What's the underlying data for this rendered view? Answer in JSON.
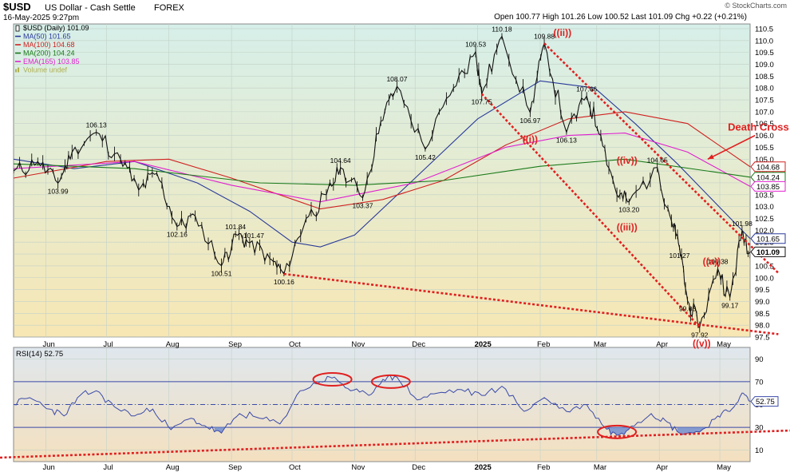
{
  "header": {
    "symbol": "$USD",
    "name": "US Dollar - Cash Settle",
    "exchange": "FOREX",
    "date": "16-May-2025 9:27pm",
    "ohlc": "Open 100.77  High 101.26  Low 100.52  Last 101.09  Chg +0.22 (+0.21%)",
    "brand": "© StockCharts.com"
  },
  "legend": [
    {
      "label": "$USD (Daily) 101.09",
      "color": "#000000",
      "symbol": "candle"
    },
    {
      "label": "MA(50) 101.65",
      "color": "#2a3a9a",
      "symbol": "line"
    },
    {
      "label": "MA(100) 104.68",
      "color": "#d02020",
      "symbol": "line"
    },
    {
      "label": "MA(200) 104.24",
      "color": "#1a7a1a",
      "symbol": "line"
    },
    {
      "label": "EMA(165) 103.85",
      "color": "#e020d0",
      "symbol": "line"
    },
    {
      "label": "Volume undef",
      "color": "#b0b050",
      "symbol": "bars"
    }
  ],
  "colors": {
    "price_bg_top": "#d6efe9",
    "price_bg_bottom": "#f7e7b4",
    "rsi_bg_top": "#dfe7ee",
    "rsi_bg_bottom": "#f4e0bf",
    "grid": "#c2d1c8",
    "price": "#111111",
    "ma50": "#2a3a9a",
    "ma100": "#d02020",
    "ema165": "#e020d0",
    "ma200": "#1a7a1a",
    "annotation_red": "#e02020",
    "rsi_line": "#3a4aa8",
    "rsi_fill": "#6a8ad0"
  },
  "chart_data": {
    "type": "line",
    "x_axis": {
      "months": [
        "Jun",
        "Jul",
        "Aug",
        "Sep",
        "Oct",
        "Nov",
        "Dec",
        "2025",
        "Feb",
        "Mar",
        "Apr",
        "May"
      ],
      "range": [
        "2024-05-16",
        "2025-05-16"
      ]
    },
    "y_axis": {
      "min": 97.5,
      "max": 110.7,
      "ticks": [
        97.5,
        98.0,
        98.5,
        99.0,
        99.5,
        100.0,
        100.5,
        101.0,
        101.5,
        102.0,
        102.5,
        103.0,
        103.5,
        104.0,
        104.5,
        105.0,
        105.5,
        106.0,
        106.5,
        107.0,
        107.5,
        108.0,
        108.5,
        109.0,
        109.5,
        110.0,
        110.5
      ]
    },
    "price_series": {
      "name": "$USD",
      "points": [
        [
          "2024-05-16",
          104.5
        ],
        [
          "2024-05-28",
          104.9
        ],
        [
          "2024-06-07",
          103.99
        ],
        [
          "2024-06-14",
          105.3
        ],
        [
          "2024-06-26",
          106.13
        ],
        [
          "2024-07-08",
          105.0
        ],
        [
          "2024-07-17",
          103.7
        ],
        [
          "2024-07-26",
          104.4
        ],
        [
          "2024-08-05",
          102.16
        ],
        [
          "2024-08-14",
          102.6
        ],
        [
          "2024-08-27",
          100.51
        ],
        [
          "2024-09-03",
          101.84
        ],
        [
          "2024-09-10",
          101.47
        ],
        [
          "2024-09-20",
          100.8
        ],
        [
          "2024-09-27",
          100.16
        ],
        [
          "2024-10-08",
          102.5
        ],
        [
          "2024-10-18",
          103.5
        ],
        [
          "2024-10-25",
          104.64
        ],
        [
          "2024-11-05",
          103.37
        ],
        [
          "2024-11-14",
          106.6
        ],
        [
          "2024-11-22",
          108.07
        ],
        [
          "2024-12-06",
          105.42
        ],
        [
          "2024-12-20",
          108.0
        ],
        [
          "2024-12-31",
          109.53
        ],
        [
          "2025-01-03",
          107.75
        ],
        [
          "2025-01-13",
          110.18
        ],
        [
          "2025-01-27",
          106.97
        ],
        [
          "2025-02-03",
          109.88
        ],
        [
          "2025-02-14",
          106.13
        ],
        [
          "2025-02-24",
          107.66
        ],
        [
          "2025-03-03",
          106.0
        ],
        [
          "2025-03-11",
          103.5
        ],
        [
          "2025-03-17",
          103.2
        ],
        [
          "2025-03-31",
          104.65
        ],
        [
          "2025-04-07",
          102.4
        ],
        [
          "2025-04-11",
          101.27
        ],
        [
          "2025-04-15",
          99.03
        ],
        [
          "2025-04-21",
          97.92
        ],
        [
          "2025-04-30",
          100.38
        ],
        [
          "2025-05-06",
          99.17
        ],
        [
          "2025-05-12",
          101.98
        ],
        [
          "2025-05-16",
          101.09
        ]
      ]
    },
    "indicators": [
      {
        "name": "MA(50)",
        "last": 101.65,
        "color_key": "ma50",
        "points": [
          [
            "2024-05-16",
            105.0
          ],
          [
            "2024-06-15",
            104.6
          ],
          [
            "2024-07-15",
            104.9
          ],
          [
            "2024-08-15",
            104.0
          ],
          [
            "2024-09-10",
            102.8
          ],
          [
            "2024-10-01",
            101.5
          ],
          [
            "2024-10-15",
            101.3
          ],
          [
            "2024-11-01",
            101.8
          ],
          [
            "2024-12-01",
            104.2
          ],
          [
            "2025-01-01",
            106.7
          ],
          [
            "2025-02-01",
            108.3
          ],
          [
            "2025-02-28",
            108.0
          ],
          [
            "2025-03-20",
            106.5
          ],
          [
            "2025-04-10",
            104.8
          ],
          [
            "2025-05-16",
            101.65
          ]
        ]
      },
      {
        "name": "MA(100)",
        "last": 104.68,
        "color_key": "ma100",
        "points": [
          [
            "2024-05-16",
            104.2
          ],
          [
            "2024-07-01",
            104.9
          ],
          [
            "2024-08-01",
            105.0
          ],
          [
            "2024-09-01",
            104.2
          ],
          [
            "2024-10-15",
            102.9
          ],
          [
            "2024-11-15",
            103.3
          ],
          [
            "2024-12-15",
            104.1
          ],
          [
            "2025-01-15",
            105.6
          ],
          [
            "2025-02-15",
            106.7
          ],
          [
            "2025-03-15",
            107.0
          ],
          [
            "2025-04-15",
            106.5
          ],
          [
            "2025-05-16",
            104.68
          ]
        ]
      },
      {
        "name": "EMA(165)",
        "last": 103.85,
        "color_key": "ema165",
        "points": [
          [
            "2024-05-16",
            104.6
          ],
          [
            "2024-07-15",
            104.9
          ],
          [
            "2024-09-01",
            103.9
          ],
          [
            "2024-10-15",
            103.2
          ],
          [
            "2024-12-01",
            104.0
          ],
          [
            "2025-01-15",
            105.5
          ],
          [
            "2025-02-15",
            106.0
          ],
          [
            "2025-03-15",
            106.1
          ],
          [
            "2025-04-15",
            105.3
          ],
          [
            "2025-05-16",
            103.85
          ]
        ]
      },
      {
        "name": "MA(200)",
        "last": 104.24,
        "color_key": "ma200",
        "points": [
          [
            "2024-05-16",
            104.8
          ],
          [
            "2024-07-15",
            104.6
          ],
          [
            "2024-09-15",
            104.0
          ],
          [
            "2024-11-01",
            103.9
          ],
          [
            "2024-12-15",
            104.1
          ],
          [
            "2025-02-01",
            104.7
          ],
          [
            "2025-03-15",
            105.0
          ],
          [
            "2025-05-16",
            104.24
          ]
        ]
      }
    ],
    "price_labels": [
      {
        "text": "106.13",
        "date": "2024-06-26",
        "value": 106.13,
        "pos": "above"
      },
      {
        "text": "103.99",
        "date": "2024-06-07",
        "value": 103.99,
        "pos": "below"
      },
      {
        "text": "102.16",
        "date": "2024-08-05",
        "value": 102.16,
        "pos": "below"
      },
      {
        "text": "101.84",
        "date": "2024-09-03",
        "value": 101.84,
        "pos": "above"
      },
      {
        "text": "101.47",
        "date": "2024-09-12",
        "value": 101.47,
        "pos": "above"
      },
      {
        "text": "100.51",
        "date": "2024-08-27",
        "value": 100.51,
        "pos": "below"
      },
      {
        "text": "100.16",
        "date": "2024-09-27",
        "value": 100.16,
        "pos": "below"
      },
      {
        "text": "104.64",
        "date": "2024-10-25",
        "value": 104.64,
        "pos": "above"
      },
      {
        "text": "103.37",
        "date": "2024-11-05",
        "value": 103.37,
        "pos": "below"
      },
      {
        "text": "108.07",
        "date": "2024-11-22",
        "value": 108.07,
        "pos": "above"
      },
      {
        "text": "105.42",
        "date": "2024-12-06",
        "value": 105.42,
        "pos": "below"
      },
      {
        "text": "109.53",
        "date": "2024-12-31",
        "value": 109.53,
        "pos": "above"
      },
      {
        "text": "107.75",
        "date": "2025-01-03",
        "value": 107.75,
        "pos": "below"
      },
      {
        "text": "110.18",
        "date": "2025-01-13",
        "value": 110.18,
        "pos": "above"
      },
      {
        "text": "106.97",
        "date": "2025-01-27",
        "value": 106.97,
        "pos": "below"
      },
      {
        "text": "109.88",
        "date": "2025-02-03",
        "value": 109.88,
        "pos": "above"
      },
      {
        "text": "107.66",
        "date": "2025-02-24",
        "value": 107.66,
        "pos": "above"
      },
      {
        "text": "106.13",
        "date": "2025-02-14",
        "value": 106.13,
        "pos": "below"
      },
      {
        "text": "104.65",
        "date": "2025-03-31",
        "value": 104.65,
        "pos": "above"
      },
      {
        "text": "103.20",
        "date": "2025-03-17",
        "value": 103.2,
        "pos": "below"
      },
      {
        "text": "101.27",
        "date": "2025-04-11",
        "value": 101.27,
        "pos": "below"
      },
      {
        "text": "99.03",
        "date": "2025-04-15",
        "value": 99.03,
        "pos": "below"
      },
      {
        "text": "97.92",
        "date": "2025-04-21",
        "value": 97.92,
        "pos": "below"
      },
      {
        "text": "100.38",
        "date": "2025-04-30",
        "value": 100.38,
        "pos": "above"
      },
      {
        "text": "99.17",
        "date": "2025-05-06",
        "value": 99.17,
        "pos": "below"
      },
      {
        "text": "101.98",
        "date": "2025-05-12",
        "value": 101.98,
        "pos": "above"
      }
    ],
    "wave_labels": [
      {
        "text": "((ii))",
        "date": "2025-02-12",
        "value": 110.2
      },
      {
        "text": "((i))",
        "date": "2025-01-27",
        "value": 105.7
      },
      {
        "text": "((iv))",
        "date": "2025-03-16",
        "value": 104.8
      },
      {
        "text": "((iii))",
        "date": "2025-03-16",
        "value": 102.0
      },
      {
        "text": "((a))",
        "date": "2025-04-27",
        "value": 100.55
      },
      {
        "text": "((v))",
        "date": "2025-04-22",
        "value": 97.1
      }
    ],
    "annotations": [
      {
        "text": "Death Cross",
        "date": "2025-05-05",
        "value": 106.2,
        "arrow_to": [
          "2025-04-25",
          105.0
        ]
      }
    ],
    "trend_lines": [
      {
        "from": [
          "2024-09-27",
          100.16
        ],
        "to": [
          "2025-05-30",
          97.62
        ],
        "extends_to_edge": true
      },
      {
        "from": [
          "2025-01-03",
          107.75
        ],
        "to": [
          "2025-04-21",
          97.92
        ]
      },
      {
        "from": [
          "2025-02-03",
          109.88
        ],
        "to": [
          "2025-05-30",
          100.2
        ],
        "extends_to_edge": true
      }
    ],
    "last_value_tags": [
      {
        "text": "104.68",
        "value": 104.68,
        "color_key": "ma100"
      },
      {
        "text": "104.24",
        "value": 104.24,
        "color_key": "ma200"
      },
      {
        "text": "103.85",
        "value": 103.85,
        "color_key": "ema165"
      },
      {
        "text": "101.65",
        "value": 101.65,
        "color_key": "ma50"
      },
      {
        "text": "101.09",
        "value": 101.09,
        "color_key": "price",
        "bold": true
      }
    ],
    "rsi": {
      "name": "RSI(14)",
      "last": 52.75,
      "label": "RSI(14) 52.75",
      "last_tag": "52.75",
      "y_min": 0,
      "y_max": 100,
      "ticks": [
        10,
        30,
        50,
        70,
        90
      ],
      "reference_lines": [
        70,
        50,
        30
      ],
      "points": [
        [
          "2024-05-16",
          50
        ],
        [
          "2024-05-24",
          56
        ],
        [
          "2024-06-03",
          46
        ],
        [
          "2024-06-10",
          40
        ],
        [
          "2024-06-18",
          58
        ],
        [
          "2024-06-26",
          62
        ],
        [
          "2024-07-05",
          48
        ],
        [
          "2024-07-15",
          40
        ],
        [
          "2024-07-24",
          46
        ],
        [
          "2024-08-02",
          28
        ],
        [
          "2024-08-12",
          38
        ],
        [
          "2024-08-20",
          30
        ],
        [
          "2024-08-27",
          25
        ],
        [
          "2024-09-05",
          42
        ],
        [
          "2024-09-15",
          38
        ],
        [
          "2024-09-25",
          33
        ],
        [
          "2024-10-05",
          62
        ],
        [
          "2024-10-15",
          70
        ],
        [
          "2024-10-22",
          74
        ],
        [
          "2024-10-30",
          62
        ],
        [
          "2024-11-08",
          58
        ],
        [
          "2024-11-15",
          72
        ],
        [
          "2024-11-22",
          74
        ],
        [
          "2024-12-02",
          54
        ],
        [
          "2024-12-12",
          60
        ],
        [
          "2024-12-24",
          63
        ],
        [
          "2025-01-03",
          58
        ],
        [
          "2025-01-13",
          66
        ],
        [
          "2025-01-24",
          44
        ],
        [
          "2025-02-03",
          56
        ],
        [
          "2025-02-14",
          44
        ],
        [
          "2025-02-24",
          50
        ],
        [
          "2025-03-05",
          30
        ],
        [
          "2025-03-11",
          23
        ],
        [
          "2025-03-18",
          31
        ],
        [
          "2025-03-28",
          42
        ],
        [
          "2025-04-04",
          36
        ],
        [
          "2025-04-11",
          25
        ],
        [
          "2025-04-21",
          26
        ],
        [
          "2025-04-30",
          40
        ],
        [
          "2025-05-06",
          44
        ],
        [
          "2025-05-12",
          60
        ],
        [
          "2025-05-16",
          52.75
        ]
      ],
      "circles": [
        [
          "2024-10-21",
          72
        ],
        [
          "2024-11-19",
          70
        ],
        [
          "2025-03-11",
          26
        ]
      ],
      "trend_line": {
        "from": [
          "2024-05-01",
          3
        ],
        "to": [
          "2025-06-01",
          27
        ],
        "extends_to_edge": true
      }
    }
  }
}
